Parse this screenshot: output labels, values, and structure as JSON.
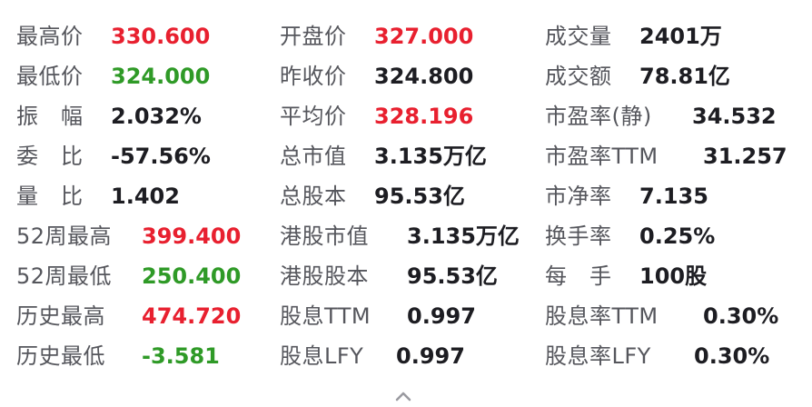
{
  "quote_stats": {
    "rows": [
      [
        {
          "label": "最高价",
          "value": "330.600",
          "tone": "up"
        },
        {
          "label": "开盘价",
          "value": "327.000",
          "tone": "up"
        },
        {
          "label": "成交量",
          "value": "2401万",
          "tone": "neutral"
        }
      ],
      [
        {
          "label": "最低价",
          "value": "324.000",
          "tone": "down"
        },
        {
          "label": "昨收价",
          "value": "324.800",
          "tone": "neutral"
        },
        {
          "label": "成交额",
          "value": "78.81亿",
          "tone": "neutral"
        }
      ],
      [
        {
          "label": "振　幅",
          "value": "2.032%",
          "tone": "neutral"
        },
        {
          "label": "平均价",
          "value": "328.196",
          "tone": "up"
        },
        {
          "label": "市盈率(静)",
          "value": "34.532",
          "tone": "neutral"
        }
      ],
      [
        {
          "label": "委　比",
          "value": "-57.56%",
          "tone": "neutral"
        },
        {
          "label": "总市值",
          "value": "3.135万亿",
          "tone": "neutral"
        },
        {
          "label": "市盈率TTM",
          "value": "31.257",
          "tone": "neutral"
        }
      ],
      [
        {
          "label": "量　比",
          "value": "1.402",
          "tone": "neutral"
        },
        {
          "label": "总股本",
          "value": "95.53亿",
          "tone": "neutral"
        },
        {
          "label": "市净率",
          "value": "7.135",
          "tone": "neutral"
        }
      ],
      [
        {
          "label": "52周最高",
          "value": "399.400",
          "tone": "up"
        },
        {
          "label": "港股市值",
          "value": "3.135万亿",
          "tone": "neutral"
        },
        {
          "label": "换手率",
          "value": "0.25%",
          "tone": "neutral"
        }
      ],
      [
        {
          "label": "52周最低",
          "value": "250.400",
          "tone": "down"
        },
        {
          "label": "港股股本",
          "value": "95.53亿",
          "tone": "neutral"
        },
        {
          "label": "每　手",
          "value": "100股",
          "tone": "neutral"
        }
      ],
      [
        {
          "label": "历史最高",
          "value": "474.720",
          "tone": "up"
        },
        {
          "label": "股息TTM",
          "value": "0.997",
          "tone": "neutral"
        },
        {
          "label": "股息率TTM",
          "value": "0.30%",
          "tone": "neutral"
        }
      ],
      [
        {
          "label": "历史最低",
          "value": "-3.581",
          "tone": "down"
        },
        {
          "label": "股息LFY",
          "value": "0.997",
          "tone": "neutral"
        },
        {
          "label": "股息率LFY",
          "value": "0.30%",
          "tone": "neutral"
        }
      ]
    ]
  },
  "colors": {
    "up": "#e8202f",
    "down": "#2f9a27",
    "neutral": "#1d1d22",
    "label": "#55565c"
  },
  "collapse_icon": "chevron-up-icon"
}
